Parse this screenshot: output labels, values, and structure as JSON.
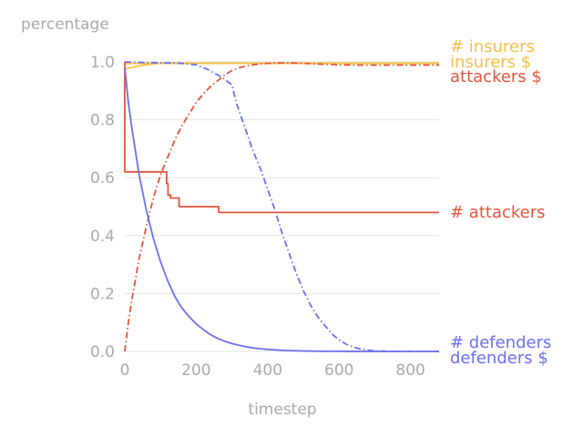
{
  "chart_data": {
    "type": "line",
    "title": "",
    "xlabel": "timestep",
    "ylabel": "percentage",
    "xlim": [
      0,
      880
    ],
    "ylim": [
      0,
      1.0
    ],
    "x_ticks": [
      0,
      200,
      400,
      600,
      800
    ],
    "y_ticks": [
      0.0,
      0.2,
      0.4,
      0.6,
      0.8,
      1.0
    ],
    "y_tick_labels": [
      "0.0",
      "0.2",
      "0.4",
      "0.6",
      "0.8",
      "1.0"
    ],
    "grid": "horizontal",
    "legend_position": "right, at line ends",
    "colors": {
      "insurers": "#f5c04a",
      "attackers": "#e5533c",
      "defenders": "#6b70ee",
      "grid": "#e6e6e6",
      "text": "#aaaaaa"
    },
    "series": [
      {
        "name": "# insurers",
        "group": "insurers",
        "style": "solid",
        "x": [
          0,
          880
        ],
        "y": [
          0.995,
          0.995
        ]
      },
      {
        "name": "insurers $",
        "group": "insurers",
        "style": "solid",
        "x": [
          0,
          20,
          40,
          60,
          80,
          100,
          120,
          140,
          160,
          880
        ],
        "y": [
          0.975,
          0.981,
          0.986,
          0.99,
          0.993,
          0.995,
          0.996,
          0.996,
          0.996,
          0.996
        ]
      },
      {
        "name": "attackers $",
        "group": "attackers",
        "style": "dashdot",
        "x": [
          0,
          10,
          20,
          40,
          60,
          80,
          100,
          120,
          140,
          160,
          180,
          200,
          220,
          240,
          260,
          280,
          300,
          320,
          340,
          360,
          380,
          400,
          420,
          440,
          460,
          480,
          500,
          550,
          600,
          650,
          700,
          750,
          800,
          880
        ],
        "y": [
          0.0,
          0.1,
          0.18,
          0.32,
          0.43,
          0.53,
          0.61,
          0.67,
          0.73,
          0.78,
          0.82,
          0.86,
          0.89,
          0.915,
          0.935,
          0.955,
          0.97,
          0.98,
          0.986,
          0.99,
          0.993,
          0.995,
          0.996,
          0.997,
          0.997,
          0.996,
          0.995,
          0.992,
          0.99,
          0.989,
          0.989,
          0.989,
          0.989,
          0.989
        ]
      },
      {
        "name": "# attackers",
        "group": "attackers",
        "style": "solid",
        "x": [
          0,
          0,
          117,
          117,
          121,
          121,
          128,
          128,
          152,
          152,
          160,
          160,
          263,
          263,
          880
        ],
        "y": [
          1.0,
          0.62,
          0.62,
          0.58,
          0.58,
          0.54,
          0.54,
          0.53,
          0.53,
          0.5,
          0.5,
          0.5,
          0.5,
          0.48,
          0.48
        ]
      },
      {
        "name": "defenders $",
        "group": "defenders",
        "style": "dashdot",
        "x": [
          0,
          50,
          100,
          150,
          200,
          230,
          260,
          280,
          300,
          310,
          320,
          340,
          360,
          380,
          400,
          420,
          440,
          460,
          480,
          500,
          520,
          540,
          560,
          580,
          600,
          620,
          640,
          660,
          680,
          700,
          720,
          760,
          880
        ],
        "y": [
          1.0,
          0.998,
          0.997,
          0.996,
          0.99,
          0.975,
          0.955,
          0.94,
          0.92,
          0.87,
          0.83,
          0.76,
          0.69,
          0.63,
          0.56,
          0.49,
          0.41,
          0.34,
          0.27,
          0.21,
          0.16,
          0.12,
          0.09,
          0.06,
          0.04,
          0.025,
          0.015,
          0.008,
          0.004,
          0.002,
          0.001,
          0.0,
          0.0
        ]
      },
      {
        "name": "# defenders",
        "group": "defenders",
        "style": "solid",
        "x": [
          0,
          10,
          20,
          30,
          40,
          50,
          60,
          80,
          100,
          120,
          140,
          160,
          180,
          200,
          220,
          240,
          260,
          280,
          300,
          320,
          340,
          360,
          380,
          400,
          450,
          500,
          550,
          600,
          700,
          880
        ],
        "y": [
          0.98,
          0.86,
          0.77,
          0.69,
          0.61,
          0.55,
          0.49,
          0.39,
          0.31,
          0.245,
          0.19,
          0.15,
          0.12,
          0.095,
          0.075,
          0.058,
          0.045,
          0.035,
          0.027,
          0.021,
          0.016,
          0.012,
          0.009,
          0.007,
          0.003,
          0.0015,
          0.0007,
          0.0003,
          0.0,
          0.0
        ]
      }
    ]
  }
}
